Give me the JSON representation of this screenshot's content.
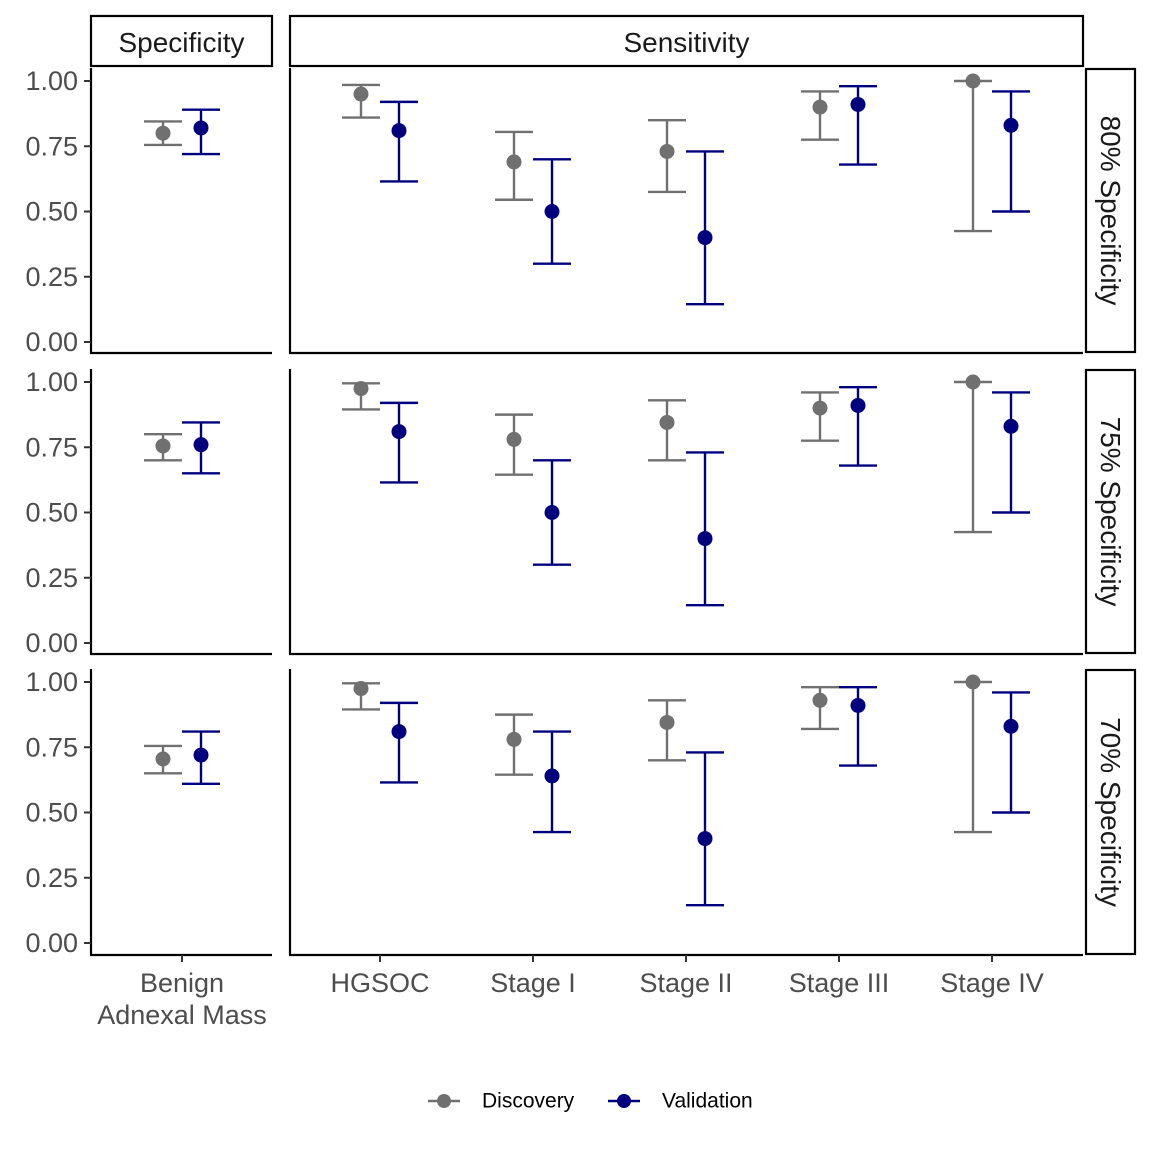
{
  "chart_data": {
    "type": "errorbar",
    "y_ticks": [
      0,
      0.25,
      0.5,
      0.75,
      1.0
    ],
    "y_tick_labels": [
      "0.00",
      "0.25",
      "0.50",
      "0.75",
      "1.00"
    ],
    "ylim": [
      0,
      1
    ],
    "column_facets": [
      {
        "label": "Specificity",
        "categories": [
          "Benign\nAdnexal Mass"
        ]
      },
      {
        "label": "Sensitivity",
        "categories": [
          "HGSOC",
          "Stage I",
          "Stage II",
          "Stage III",
          "Stage IV"
        ]
      }
    ],
    "row_facets": [
      "80% Specificity",
      "75% Specificity",
      "70% Specificity"
    ],
    "legend": {
      "position": "bottom",
      "entries": [
        "Discovery",
        "Validation"
      ]
    },
    "colors": {
      "Discovery": "#707070",
      "Validation": "#00007f"
    },
    "panels": [
      {
        "row": "80% Specificity",
        "series": [
          {
            "name": "Discovery",
            "points": [
              {
                "category": "Benign\nAdnexal Mass",
                "y": 0.8,
                "lo": 0.755,
                "hi": 0.845
              },
              {
                "category": "HGSOC",
                "y": 0.95,
                "lo": 0.86,
                "hi": 0.985
              },
              {
                "category": "Stage I",
                "y": 0.69,
                "lo": 0.545,
                "hi": 0.805
              },
              {
                "category": "Stage II",
                "y": 0.73,
                "lo": 0.575,
                "hi": 0.85
              },
              {
                "category": "Stage III",
                "y": 0.9,
                "lo": 0.775,
                "hi": 0.96
              },
              {
                "category": "Stage IV",
                "y": 1.0,
                "lo": 0.425,
                "hi": 1.0
              }
            ]
          },
          {
            "name": "Validation",
            "points": [
              {
                "category": "Benign\nAdnexal Mass",
                "y": 0.82,
                "lo": 0.72,
                "hi": 0.89
              },
              {
                "category": "HGSOC",
                "y": 0.81,
                "lo": 0.615,
                "hi": 0.92
              },
              {
                "category": "Stage I",
                "y": 0.5,
                "lo": 0.3,
                "hi": 0.7
              },
              {
                "category": "Stage II",
                "y": 0.4,
                "lo": 0.145,
                "hi": 0.73
              },
              {
                "category": "Stage III",
                "y": 0.91,
                "lo": 0.68,
                "hi": 0.98
              },
              {
                "category": "Stage IV",
                "y": 0.83,
                "lo": 0.5,
                "hi": 0.96
              }
            ]
          }
        ]
      },
      {
        "row": "75% Specificity",
        "series": [
          {
            "name": "Discovery",
            "points": [
              {
                "category": "Benign\nAdnexal Mass",
                "y": 0.755,
                "lo": 0.7,
                "hi": 0.8
              },
              {
                "category": "HGSOC",
                "y": 0.975,
                "lo": 0.895,
                "hi": 0.995
              },
              {
                "category": "Stage I",
                "y": 0.78,
                "lo": 0.645,
                "hi": 0.875
              },
              {
                "category": "Stage II",
                "y": 0.845,
                "lo": 0.7,
                "hi": 0.93
              },
              {
                "category": "Stage III",
                "y": 0.9,
                "lo": 0.775,
                "hi": 0.96
              },
              {
                "category": "Stage IV",
                "y": 1.0,
                "lo": 0.425,
                "hi": 1.0
              }
            ]
          },
          {
            "name": "Validation",
            "points": [
              {
                "category": "Benign\nAdnexal Mass",
                "y": 0.76,
                "lo": 0.65,
                "hi": 0.845
              },
              {
                "category": "HGSOC",
                "y": 0.81,
                "lo": 0.615,
                "hi": 0.92
              },
              {
                "category": "Stage I",
                "y": 0.5,
                "lo": 0.3,
                "hi": 0.7
              },
              {
                "category": "Stage II",
                "y": 0.4,
                "lo": 0.145,
                "hi": 0.73
              },
              {
                "category": "Stage III",
                "y": 0.91,
                "lo": 0.68,
                "hi": 0.98
              },
              {
                "category": "Stage IV",
                "y": 0.83,
                "lo": 0.5,
                "hi": 0.96
              }
            ]
          }
        ]
      },
      {
        "row": "70% Specificity",
        "series": [
          {
            "name": "Discovery",
            "points": [
              {
                "category": "Benign\nAdnexal Mass",
                "y": 0.705,
                "lo": 0.65,
                "hi": 0.755
              },
              {
                "category": "HGSOC",
                "y": 0.975,
                "lo": 0.895,
                "hi": 0.995
              },
              {
                "category": "Stage I",
                "y": 0.78,
                "lo": 0.645,
                "hi": 0.875
              },
              {
                "category": "Stage II",
                "y": 0.845,
                "lo": 0.7,
                "hi": 0.93
              },
              {
                "category": "Stage III",
                "y": 0.93,
                "lo": 0.82,
                "hi": 0.98
              },
              {
                "category": "Stage IV",
                "y": 1.0,
                "lo": 0.425,
                "hi": 1.0
              }
            ]
          },
          {
            "name": "Validation",
            "points": [
              {
                "category": "Benign\nAdnexal Mass",
                "y": 0.72,
                "lo": 0.61,
                "hi": 0.81
              },
              {
                "category": "HGSOC",
                "y": 0.81,
                "lo": 0.615,
                "hi": 0.92
              },
              {
                "category": "Stage I",
                "y": 0.64,
                "lo": 0.425,
                "hi": 0.81
              },
              {
                "category": "Stage II",
                "y": 0.4,
                "lo": 0.145,
                "hi": 0.73
              },
              {
                "category": "Stage III",
                "y": 0.91,
                "lo": 0.68,
                "hi": 0.98
              },
              {
                "category": "Stage IV",
                "y": 0.83,
                "lo": 0.5,
                "hi": 0.96
              }
            ]
          }
        ]
      }
    ]
  }
}
